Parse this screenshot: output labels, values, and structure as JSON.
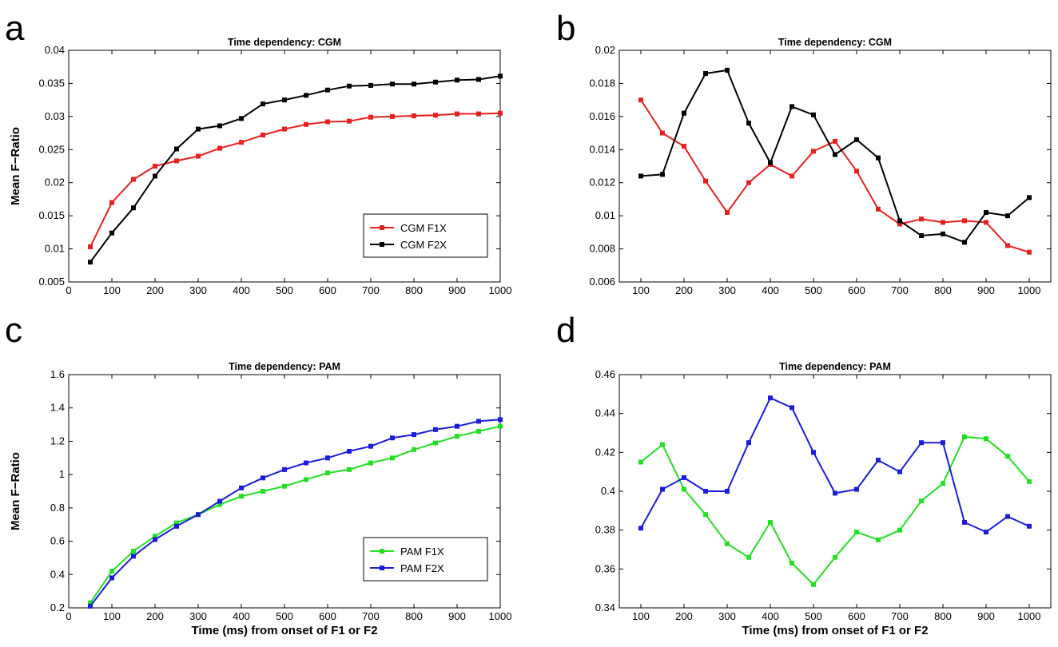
{
  "chart_data": [
    {
      "panel": "a",
      "type": "line",
      "title": "Time dependency: CGM",
      "ylabel": "Mean F−Ratio",
      "xlabel": "",
      "xlim": [
        0,
        1000
      ],
      "ylim": [
        0.005,
        0.04
      ],
      "xticks": [
        0,
        100,
        200,
        300,
        400,
        500,
        600,
        700,
        800,
        900,
        1000
      ],
      "yticks": [
        0.005,
        0.01,
        0.015,
        0.02,
        0.025,
        0.03,
        0.035,
        0.04
      ],
      "ytick_labels": [
        "0.005",
        "0.01",
        "0.015",
        "0.02",
        "0.025",
        "0.03",
        "0.035",
        "0.04"
      ],
      "grid": false,
      "legend_position": "lower-right",
      "x": [
        50,
        100,
        150,
        200,
        250,
        300,
        350,
        400,
        450,
        500,
        550,
        600,
        650,
        700,
        750,
        800,
        850,
        900,
        950,
        1000
      ],
      "series": [
        {
          "name": "CGM F1X",
          "color": "#e8201f",
          "values": [
            0.0103,
            0.017,
            0.0205,
            0.0225,
            0.0233,
            0.024,
            0.0252,
            0.0261,
            0.0272,
            0.0281,
            0.0288,
            0.0292,
            0.0293,
            0.0299,
            0.03,
            0.0301,
            0.0302,
            0.0304,
            0.0304,
            0.0305
          ]
        },
        {
          "name": "CGM F2X",
          "color": "#000000",
          "values": [
            0.008,
            0.0124,
            0.0162,
            0.021,
            0.0251,
            0.0281,
            0.0286,
            0.0297,
            0.0319,
            0.0325,
            0.0332,
            0.034,
            0.0346,
            0.0347,
            0.0349,
            0.0349,
            0.0352,
            0.0355,
            0.0356,
            0.0361
          ]
        }
      ]
    },
    {
      "panel": "b",
      "type": "line",
      "title": "Time dependency: CGM",
      "ylabel": "",
      "xlabel": "",
      "xlim": [
        50,
        1050
      ],
      "ylim": [
        0.006,
        0.02
      ],
      "xticks": [
        100,
        200,
        300,
        400,
        500,
        600,
        700,
        800,
        900,
        1000
      ],
      "yticks": [
        0.006,
        0.008,
        0.01,
        0.012,
        0.014,
        0.016,
        0.018,
        0.02
      ],
      "ytick_labels": [
        "0.006",
        "0.008",
        "0.01",
        "0.012",
        "0.014",
        "0.016",
        "0.018",
        "0.02"
      ],
      "grid": false,
      "x": [
        100,
        150,
        200,
        250,
        300,
        350,
        400,
        450,
        500,
        550,
        600,
        650,
        700,
        750,
        800,
        850,
        900,
        950,
        1000
      ],
      "series": [
        {
          "color": "#e8201f",
          "values": [
            0.017,
            0.015,
            0.0142,
            0.0121,
            0.0102,
            0.012,
            0.0131,
            0.0124,
            0.0139,
            0.0145,
            0.0127,
            0.0104,
            0.0095,
            0.0098,
            0.0096,
            0.0097,
            0.0096,
            0.0082,
            0.0078
          ]
        },
        {
          "color": "#000000",
          "values": [
            0.0124,
            0.0125,
            0.0162,
            0.0186,
            0.0188,
            0.0156,
            0.0132,
            0.0166,
            0.0161,
            0.0137,
            0.0146,
            0.0135,
            0.0097,
            0.0088,
            0.0089,
            0.0084,
            0.0102,
            0.01,
            0.0111
          ]
        }
      ]
    },
    {
      "panel": "c",
      "type": "line",
      "title": "Time dependency: PAM",
      "ylabel": "Mean F−Ratio",
      "xlabel": "Time (ms) from onset of F1 or F2",
      "xlim": [
        0,
        1000
      ],
      "ylim": [
        0.2,
        1.6
      ],
      "xticks": [
        0,
        100,
        200,
        300,
        400,
        500,
        600,
        700,
        800,
        900,
        1000
      ],
      "yticks": [
        0.2,
        0.4,
        0.6,
        0.8,
        1.0,
        1.2,
        1.4,
        1.6
      ],
      "ytick_labels": [
        "0.2",
        "0.4",
        "0.6",
        "0.8",
        "1",
        "1.2",
        "1.4",
        "1.6"
      ],
      "grid": false,
      "legend_position": "lower-right",
      "x": [
        50,
        100,
        150,
        200,
        250,
        300,
        350,
        400,
        450,
        500,
        550,
        600,
        650,
        700,
        750,
        800,
        850,
        900,
        950,
        1000
      ],
      "series": [
        {
          "name": "PAM F1X",
          "color": "#22e022",
          "values": [
            0.23,
            0.42,
            0.54,
            0.63,
            0.71,
            0.76,
            0.82,
            0.87,
            0.9,
            0.93,
            0.97,
            1.01,
            1.03,
            1.07,
            1.1,
            1.15,
            1.19,
            1.23,
            1.26,
            1.29
          ]
        },
        {
          "name": "PAM F2X",
          "color": "#1c1cdd",
          "values": [
            0.21,
            0.38,
            0.51,
            0.61,
            0.69,
            0.76,
            0.84,
            0.92,
            0.98,
            1.03,
            1.07,
            1.1,
            1.14,
            1.17,
            1.22,
            1.24,
            1.27,
            1.29,
            1.32,
            1.33
          ]
        }
      ]
    },
    {
      "panel": "d",
      "type": "line",
      "title": "Time dependency: PAM",
      "ylabel": "",
      "xlabel": "Time (ms) from onset of F1 or F2",
      "xlim": [
        50,
        1050
      ],
      "ylim": [
        0.34,
        0.46
      ],
      "xticks": [
        100,
        200,
        300,
        400,
        500,
        600,
        700,
        800,
        900,
        1000
      ],
      "yticks": [
        0.34,
        0.36,
        0.38,
        0.4,
        0.42,
        0.44,
        0.46
      ],
      "ytick_labels": [
        "0.34",
        "0.36",
        "0.38",
        "0.4",
        "0.42",
        "0.44",
        "0.46"
      ],
      "grid": false,
      "x": [
        100,
        150,
        200,
        250,
        300,
        350,
        400,
        450,
        500,
        550,
        600,
        650,
        700,
        750,
        800,
        850,
        900,
        950,
        1000
      ],
      "series": [
        {
          "color": "#22e022",
          "values": [
            0.415,
            0.424,
            0.401,
            0.388,
            0.373,
            0.366,
            0.384,
            0.363,
            0.352,
            0.366,
            0.379,
            0.375,
            0.38,
            0.395,
            0.404,
            0.428,
            0.427,
            0.418,
            0.405
          ]
        },
        {
          "color": "#1c1cdd",
          "values": [
            0.381,
            0.401,
            0.407,
            0.4,
            0.4,
            0.425,
            0.448,
            0.443,
            0.42,
            0.399,
            0.401,
            0.416,
            0.41,
            0.425,
            0.425,
            0.384,
            0.379,
            0.387,
            0.382
          ]
        }
      ]
    }
  ]
}
